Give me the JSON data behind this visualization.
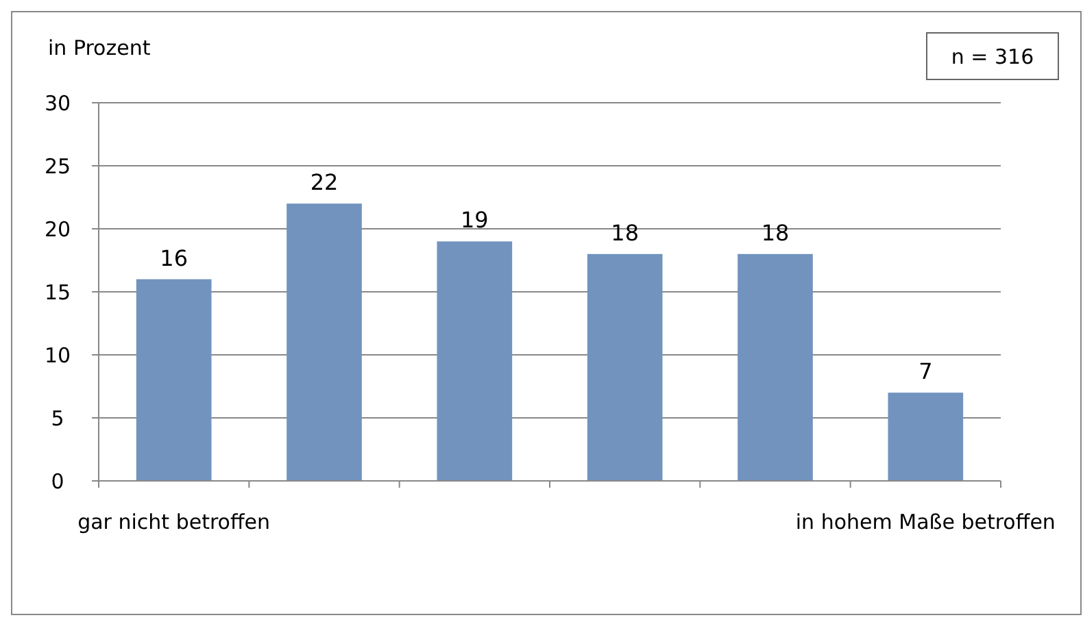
{
  "chart_data": {
    "type": "bar",
    "ylabel": "in Prozent",
    "categories": [
      "gar nicht betroffen",
      null,
      null,
      null,
      null,
      "in hohem Maße betroffen"
    ],
    "values": [
      16,
      22,
      19,
      18,
      18,
      7
    ],
    "color": "#7193be",
    "ylim": [
      0,
      30
    ],
    "yticks": [
      0,
      5,
      10,
      15,
      20,
      25,
      30
    ],
    "grid": "y",
    "data_labels": true,
    "annotations": [
      "n = 316"
    ]
  }
}
